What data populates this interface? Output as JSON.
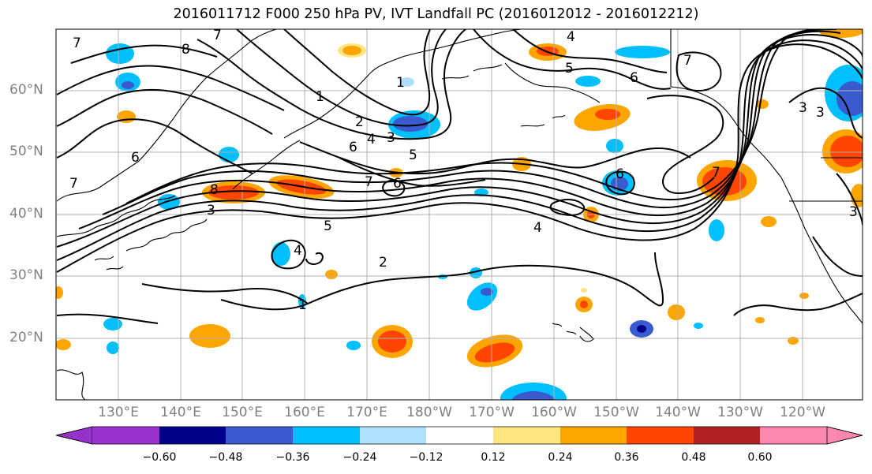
{
  "title": "2016011712 F000 250 hPa PV, IVT Landfall PC (2016012012 - 2016012212)",
  "latitude_labels": [
    "60°N",
    "50°N",
    "40°N",
    "30°N",
    "20°N"
  ],
  "longitude_labels": [
    "130°E",
    "140°E",
    "150°E",
    "160°E",
    "170°E",
    "180°W",
    "170°W",
    "160°W",
    "150°W",
    "140°W",
    "130°W",
    "120°W"
  ],
  "colorbar": {
    "tick_labels": [
      "−0.60",
      "−0.48",
      "−0.36",
      "−0.24",
      "−0.12",
      "0.12",
      "0.24",
      "0.36",
      "0.48",
      "0.60"
    ],
    "colors": [
      "#9932cc",
      "#00008b",
      "#3a5bd0",
      "#00bfff",
      "#b0e0ff",
      "#ffffff",
      "#ffe680",
      "#ffa500",
      "#ff4500",
      "#b22222",
      "#ff88b0"
    ]
  },
  "contour_labels": [
    "7",
    "8",
    "7",
    "4",
    "5",
    "6",
    "7",
    "1",
    "2",
    "3",
    "4",
    "5",
    "6",
    "7",
    "6",
    "1",
    "3",
    "8",
    "3",
    "5",
    "4",
    "2",
    "1",
    "6",
    "6",
    "7",
    "4",
    "7",
    "3",
    "3"
  ]
}
